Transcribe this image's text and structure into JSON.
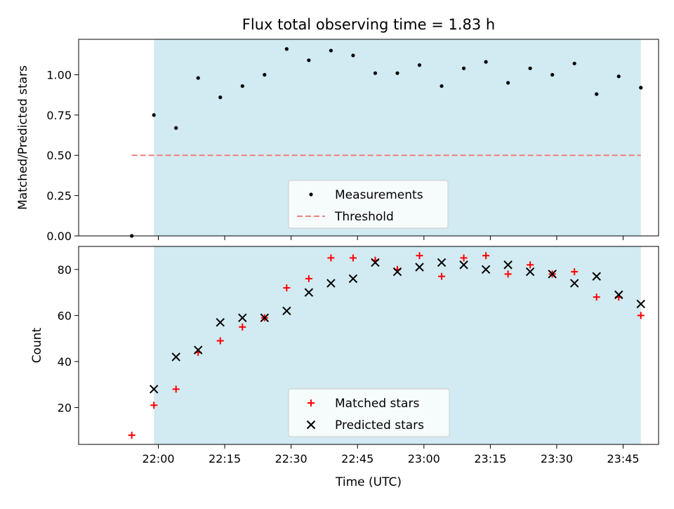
{
  "chart_data": [
    {
      "type": "scatter",
      "title": "Flux total observing time = 1.83 h",
      "xlabel": "",
      "ylabel": "Matched/Predicted stars",
      "xlim": [
        "21:42",
        "23:53"
      ],
      "ylim": [
        0,
        1.22
      ],
      "yticks": [
        "0.00",
        "0.25",
        "0.50",
        "0.75",
        "1.00"
      ],
      "shaded_span": [
        "21:59",
        "23:49"
      ],
      "shade_color": "#add8e6",
      "legend_position": "lower center",
      "series": [
        {
          "name": "Measurements",
          "marker": "dot",
          "color": "#000000",
          "x": [
            "21:54",
            "21:59",
            "22:04",
            "22:09",
            "22:14",
            "22:19",
            "22:24",
            "22:29",
            "22:34",
            "22:39",
            "22:44",
            "22:49",
            "22:54",
            "22:59",
            "23:04",
            "23:09",
            "23:14",
            "23:19",
            "23:24",
            "23:29",
            "23:34",
            "23:39",
            "23:44",
            "23:49"
          ],
          "y": [
            0.0,
            0.75,
            0.67,
            0.98,
            0.86,
            0.93,
            1.0,
            1.16,
            1.09,
            1.15,
            1.12,
            1.01,
            1.01,
            1.06,
            0.93,
            1.04,
            1.08,
            0.95,
            1.04,
            1.0,
            1.07,
            0.88,
            0.99,
            0.92
          ]
        },
        {
          "name": "Threshold",
          "marker": "dashed-line",
          "color": "#f08080",
          "x": [
            "21:54",
            "23:49"
          ],
          "y": [
            0.5,
            0.5
          ]
        }
      ]
    },
    {
      "type": "scatter",
      "title": "",
      "xlabel": "Time (UTC)",
      "ylabel": "Count",
      "xlim": [
        "21:42",
        "23:53"
      ],
      "ylim": [
        4,
        90
      ],
      "yticks": [
        "20",
        "40",
        "60",
        "80"
      ],
      "xticks": [
        "22:00",
        "22:15",
        "22:30",
        "22:45",
        "23:00",
        "23:15",
        "23:30",
        "23:45"
      ],
      "shaded_span": [
        "21:59",
        "23:49"
      ],
      "shade_color": "#add8e6",
      "legend_position": "lower center",
      "series": [
        {
          "name": "Matched stars",
          "marker": "plus",
          "color": "#ff0000",
          "x": [
            "21:54",
            "21:59",
            "22:04",
            "22:09",
            "22:14",
            "22:19",
            "22:24",
            "22:29",
            "22:34",
            "22:39",
            "22:44",
            "22:49",
            "22:54",
            "22:59",
            "23:04",
            "23:09",
            "23:14",
            "23:19",
            "23:24",
            "23:29",
            "23:34",
            "23:39",
            "23:44",
            "23:49"
          ],
          "y": [
            8,
            21,
            28,
            44,
            49,
            55,
            59,
            72,
            76,
            85,
            85,
            84,
            80,
            86,
            77,
            85,
            86,
            78,
            82,
            78,
            79,
            68,
            68,
            60
          ]
        },
        {
          "name": "Predicted stars",
          "marker": "x",
          "color": "#000000",
          "x": [
            "21:59",
            "22:04",
            "22:09",
            "22:14",
            "22:19",
            "22:24",
            "22:29",
            "22:34",
            "22:39",
            "22:44",
            "22:49",
            "22:54",
            "22:59",
            "23:04",
            "23:09",
            "23:14",
            "23:19",
            "23:24",
            "23:29",
            "23:34",
            "23:39",
            "23:44",
            "23:49"
          ],
          "y": [
            28,
            42,
            45,
            57,
            59,
            59,
            62,
            70,
            74,
            76,
            83,
            79,
            81,
            83,
            82,
            80,
            82,
            79,
            78,
            74,
            77,
            69,
            65
          ]
        }
      ]
    }
  ]
}
